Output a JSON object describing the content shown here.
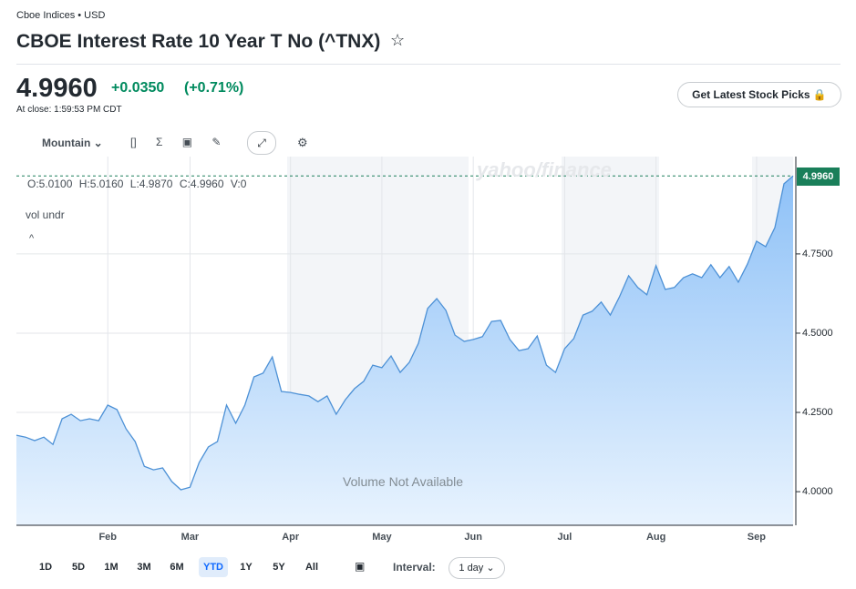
{
  "header": {
    "source": "Cboe Indices • USD",
    "title": "CBOE Interest Rate 10 Year T No (^TNX)",
    "price": "4.9960",
    "change": "+0.0350",
    "change_pct": "(+0.71%)",
    "close_note": "At close: 1:59:53 PM CDT",
    "cta": "Get Latest Stock Picks"
  },
  "toolbar": {
    "chart_style": "Mountain"
  },
  "legend": {
    "ohlc": [
      "O:5.0100",
      "H:5.0160",
      "L:4.9870",
      "C:4.9960",
      "V:0"
    ],
    "indicator": "vol undr",
    "watermark": "yahoo/finance",
    "volume_note": "Volume Not Available"
  },
  "ranges": {
    "buttons": [
      "1D",
      "5D",
      "1M",
      "3M",
      "6M",
      "YTD",
      "1Y",
      "5Y",
      "All"
    ],
    "selected": "YTD",
    "interval_label": "Interval:",
    "interval": "1 day"
  },
  "chart_data": {
    "type": "area",
    "color": "#4d91d6",
    "categories": [
      null,
      null,
      null,
      null,
      null,
      null,
      null,
      null,
      null,
      null,
      "Feb",
      null,
      null,
      null,
      null,
      null,
      null,
      null,
      null,
      "Mar",
      null,
      null,
      null,
      null,
      null,
      null,
      null,
      null,
      null,
      null,
      "Apr",
      null,
      null,
      null,
      null,
      null,
      null,
      null,
      null,
      null,
      "May",
      null,
      null,
      null,
      null,
      null,
      null,
      null,
      null,
      null,
      "Jun",
      null,
      null,
      null,
      null,
      null,
      null,
      null,
      null,
      null,
      "Jul",
      null,
      null,
      null,
      null,
      null,
      null,
      null,
      null,
      null,
      "Aug",
      null,
      null,
      null,
      null,
      null,
      null,
      null,
      null,
      null,
      null,
      "Sep",
      null,
      null,
      null,
      null
    ],
    "values": [
      4.178,
      4.172,
      4.161,
      4.172,
      4.149,
      4.23,
      4.244,
      4.224,
      4.23,
      4.224,
      4.273,
      4.259,
      4.198,
      4.158,
      4.08,
      4.069,
      4.075,
      4.032,
      4.006,
      4.014,
      4.092,
      4.141,
      4.158,
      4.273,
      4.216,
      4.273,
      4.362,
      4.374,
      4.425,
      4.316,
      4.313,
      4.307,
      4.302,
      4.284,
      4.302,
      4.244,
      4.29,
      4.325,
      4.348,
      4.399,
      4.391,
      4.428,
      4.376,
      4.408,
      4.468,
      4.578,
      4.609,
      4.572,
      4.494,
      4.474,
      4.48,
      4.489,
      4.537,
      4.54,
      4.48,
      4.445,
      4.451,
      4.491,
      4.399,
      4.376,
      4.451,
      4.483,
      4.557,
      4.569,
      4.598,
      4.557,
      4.615,
      4.681,
      4.644,
      4.621,
      4.713,
      4.638,
      4.644,
      4.675,
      4.687,
      4.675,
      4.716,
      4.675,
      4.71,
      4.661,
      4.718,
      4.79,
      4.773,
      4.833,
      4.971,
      4.996
    ],
    "ylim": [
      3.894,
      5.057
    ],
    "yticks": [
      {
        "value": 4,
        "label": "4.0000"
      },
      {
        "value": 4.25,
        "label": "4.2500"
      },
      {
        "value": 4.5,
        "label": "4.5000"
      },
      {
        "value": 4.75,
        "label": "4.7500"
      }
    ],
    "grid": true
  }
}
